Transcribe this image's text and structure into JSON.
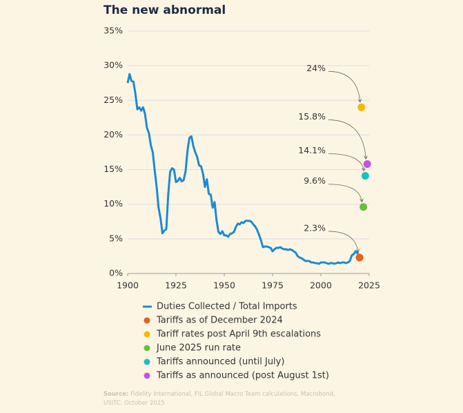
{
  "chart_data": {
    "type": "line",
    "title": "The new abnormal",
    "xlim": [
      1900,
      2025
    ],
    "xticks": [
      1900,
      1925,
      1950,
      1975,
      2000,
      2025
    ],
    "ylim": [
      0,
      35
    ],
    "yticks": [
      {
        "value": 0,
        "label": "0%"
      },
      {
        "value": 5,
        "label": "5%"
      },
      {
        "value": 10,
        "label": "10%"
      },
      {
        "value": 15,
        "label": "15%"
      },
      {
        "value": 20,
        "label": "20%"
      },
      {
        "value": 25,
        "label": "25%"
      },
      {
        "value": 30,
        "label": "30%"
      },
      {
        "value": 35,
        "label": "35%"
      }
    ],
    "grid": true,
    "series": [
      {
        "name": "Duties Collected / Total Imports",
        "type": "line",
        "color": "#1a8ad4",
        "x": [
          1900,
          1901,
          1902,
          1903,
          1904,
          1905,
          1906,
          1907,
          1908,
          1909,
          1910,
          1911,
          1912,
          1913,
          1914,
          1915,
          1916,
          1917,
          1918,
          1919,
          1920,
          1921,
          1922,
          1923,
          1924,
          1925,
          1926,
          1927,
          1928,
          1929,
          1930,
          1931,
          1932,
          1933,
          1934,
          1935,
          1936,
          1937,
          1938,
          1939,
          1940,
          1941,
          1942,
          1943,
          1944,
          1945,
          1946,
          1947,
          1948,
          1949,
          1950,
          1951,
          1952,
          1953,
          1954,
          1955,
          1956,
          1957,
          1958,
          1959,
          1960,
          1961,
          1962,
          1963,
          1964,
          1965,
          1966,
          1967,
          1968,
          1969,
          1970,
          1971,
          1972,
          1973,
          1974,
          1975,
          1976,
          1977,
          1978,
          1979,
          1980,
          1981,
          1982,
          1983,
          1984,
          1985,
          1986,
          1987,
          1988,
          1989,
          1990,
          1991,
          1992,
          1993,
          1994,
          1995,
          1996,
          1997,
          1998,
          1999,
          2000,
          2001,
          2002,
          2003,
          2004,
          2005,
          2006,
          2007,
          2008,
          2009,
          2010,
          2011,
          2012,
          2013,
          2014,
          2015,
          2016,
          2017,
          2018,
          2019,
          2020
        ],
        "values": [
          27.5,
          28.8,
          27.8,
          27.7,
          26,
          23.7,
          24,
          23.5,
          24,
          23,
          21,
          20.3,
          18.5,
          17.5,
          14.9,
          12.5,
          9.5,
          8,
          5.8,
          6.2,
          6.4,
          11.4,
          14.7,
          15.2,
          15,
          13.2,
          13.4,
          13.8,
          13.3,
          13.5,
          14.8,
          17.8,
          19.6,
          19.8,
          18.4,
          17.5,
          16.8,
          15.6,
          15.5,
          14.4,
          12.5,
          13.6,
          11.5,
          11.4,
          9.5,
          10.3,
          7.7,
          6,
          5.7,
          6.1,
          5.5,
          5.5,
          5.3,
          5.7,
          5.8,
          6,
          6.7,
          7.2,
          7.1,
          7.4,
          7.3,
          7.6,
          7.6,
          7.6,
          7.5,
          7.1,
          6.8,
          6.3,
          5.6,
          4.8,
          3.8,
          3.9,
          3.9,
          3.8,
          3.7,
          3.2,
          3.5,
          3.7,
          3.7,
          3.8,
          3.6,
          3.5,
          3.5,
          3.4,
          3.5,
          3.4,
          3.2,
          3,
          2.5,
          2.3,
          2.2,
          2,
          1.8,
          1.8,
          1.8,
          1.6,
          1.6,
          1.5,
          1.5,
          1.4,
          1.6,
          1.6,
          1.6,
          1.5,
          1.4,
          1.5,
          1.5,
          1.4,
          1.5,
          1.6,
          1.5,
          1.6,
          1.6,
          1.5,
          1.6,
          1.8,
          2.6,
          2.8,
          3.2,
          2.9,
          2.6
        ]
      },
      {
        "name": "Tariffs as of December 2024",
        "type": "scatter",
        "color": "#e8601c",
        "x": [
          2020
        ],
        "values": [
          2.3
        ],
        "value_labels": [
          "2.3%"
        ]
      },
      {
        "name": "Tariff rates post April 9th escalations",
        "type": "scatter",
        "color": "#f7b900",
        "x": [
          2021
        ],
        "values": [
          24
        ],
        "value_labels": [
          "24%"
        ]
      },
      {
        "name": "June 2025 run rate",
        "type": "scatter",
        "color": "#6abf3a",
        "x": [
          2022
        ],
        "values": [
          9.6
        ],
        "value_labels": [
          "9.6%"
        ]
      },
      {
        "name": "Tariffs announced (until July)",
        "type": "scatter",
        "color": "#1abfc6",
        "x": [
          2023
        ],
        "values": [
          14.1
        ],
        "value_labels": [
          "14.1%"
        ]
      },
      {
        "name": "Tariffs as announced (post August 1st)",
        "type": "scatter",
        "color": "#c653dd",
        "x": [
          2024
        ],
        "values": [
          15.8
        ],
        "value_labels": [
          "15.8%"
        ]
      }
    ],
    "source_label": "Source:",
    "source": "Fidelity International, FIL Global Macro Team calculations, Macrobond, USITC. October 2025"
  }
}
